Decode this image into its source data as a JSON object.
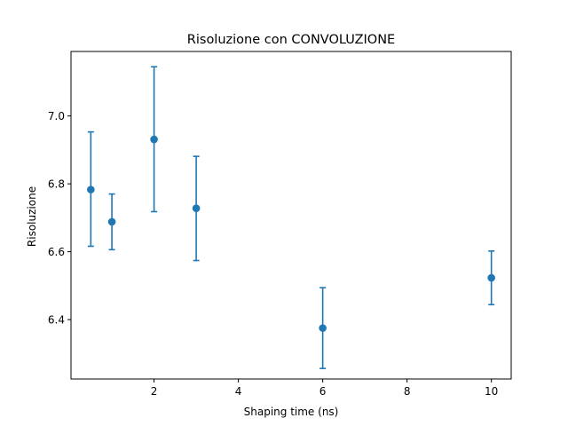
{
  "chart_data": {
    "type": "scatter",
    "title": "Risoluzione con CONVOLUZIONE",
    "xlabel": "Shaping time (ns)",
    "ylabel": "Risoluzione",
    "xlim": [
      0.03,
      10.47
    ],
    "ylim": [
      6.225,
      7.19
    ],
    "xticks": [
      2,
      4,
      6,
      8,
      10
    ],
    "xtick_labels": [
      "2",
      "4",
      "6",
      "8",
      "10"
    ],
    "yticks": [
      6.4,
      6.6,
      6.8,
      7.0
    ],
    "ytick_labels": [
      "6.4",
      "6.6",
      "6.8",
      "7.0"
    ],
    "grid": false,
    "color": "#1f77b4",
    "points": [
      {
        "x": 0.5,
        "y": 6.783,
        "ylow": 6.616,
        "yhigh": 6.953
      },
      {
        "x": 1.0,
        "y": 6.688,
        "ylow": 6.606,
        "yhigh": 6.77
      },
      {
        "x": 2.0,
        "y": 6.931,
        "ylow": 6.718,
        "yhigh": 7.145
      },
      {
        "x": 3.0,
        "y": 6.728,
        "ylow": 6.574,
        "yhigh": 6.881
      },
      {
        "x": 6.0,
        "y": 6.375,
        "ylow": 6.256,
        "yhigh": 6.494
      },
      {
        "x": 10.0,
        "y": 6.523,
        "ylow": 6.444,
        "yhigh": 6.602
      }
    ]
  }
}
